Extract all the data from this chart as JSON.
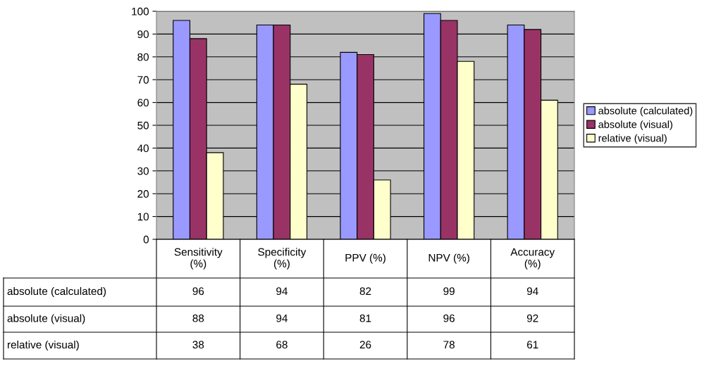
{
  "chart_data": {
    "type": "bar",
    "categories": [
      "Sensitivity (%)",
      "Specificity (%)",
      "PPV (%)",
      "NPV (%)",
      "Accuracy (%)"
    ],
    "series": [
      {
        "name": "absolute (calculated)",
        "color": "#9999ff",
        "values": [
          96,
          94,
          82,
          99,
          94
        ]
      },
      {
        "name": "absolute (visual)",
        "color": "#993366",
        "values": [
          88,
          94,
          81,
          96,
          92
        ]
      },
      {
        "name": "relative (visual)",
        "color": "#ffffcc",
        "values": [
          38,
          68,
          26,
          78,
          61
        ]
      }
    ],
    "ylim": [
      0,
      100
    ],
    "yticks": [
      0,
      10,
      20,
      30,
      40,
      50,
      60,
      70,
      80,
      90,
      100
    ],
    "grid": "y",
    "legend": "right",
    "data_labels": true
  }
}
